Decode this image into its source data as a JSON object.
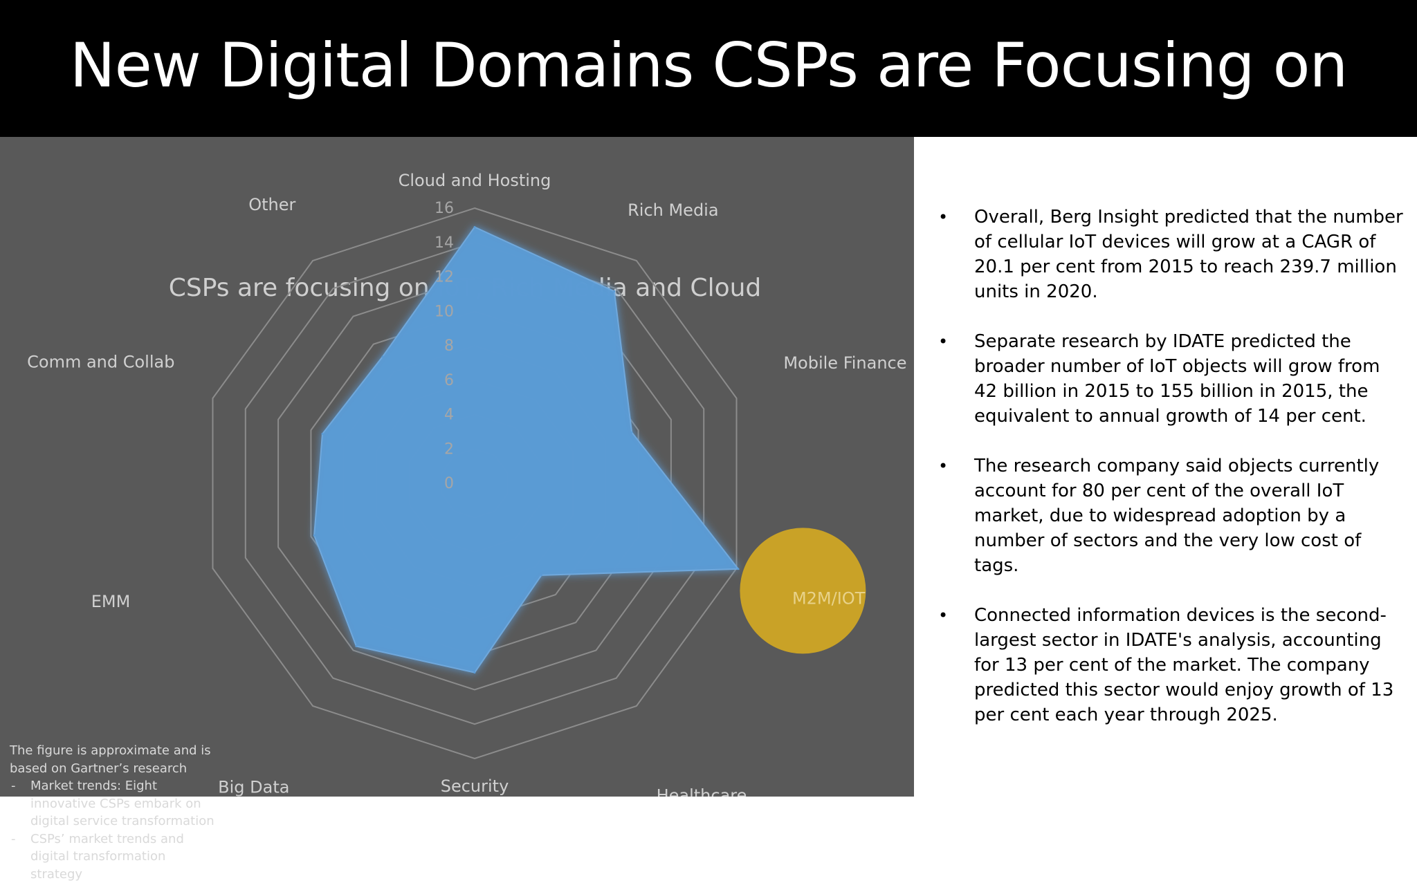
{
  "slide": {
    "title": "New Digital Domains CSPs are Focusing on"
  },
  "chart_data": {
    "type": "radar",
    "title": "CSPs are focusing on IoT, Rich Media and Cloud",
    "categories": [
      "Cloud and Hosting",
      "Rich Media",
      "Mobile Finance",
      "M2M/IOT",
      "Healthcare",
      "Security",
      "Big Data",
      "EMM",
      "Comm and Collab",
      "Other"
    ],
    "values": [
      14.9,
      13.8,
      9.6,
      16.1,
      6.6,
      11.0,
      11.7,
      9.8,
      9.3,
      9.1
    ],
    "rmax": 16,
    "ticks": [
      "0",
      "2",
      "4",
      "6",
      "8",
      "10",
      "12",
      "14",
      "16"
    ],
    "grid": true,
    "series_color": "#5b9bd5",
    "highlight": {
      "category": "M2M/IOT",
      "color": "#c9a227"
    },
    "background": "#595959"
  },
  "footnote": {
    "intro": "The figure is approximate and is based on Gartner’s research",
    "items": [
      "Market trends: Eight innovative CSPs embark on digital service transformation",
      "CSPs’ market trends and digital transformation strategy"
    ]
  },
  "bullets": [
    "Overall, Berg Insight predicted that the number of cellular IoT devices will grow at a CAGR of 20.1 per cent from 2015 to reach 239.7 million units in 2020.",
    "Separate research by IDATE predicted the broader number of IoT objects will grow from 42 billion in 2015 to 155 billion in 2015, the equivalent to annual growth of 14 per cent.",
    "The research company said objects currently account for 80 per cent of the overall IoT market, due to widespread adoption by a number of sectors and the very low cost of tags.",
    "Connected information devices is the second-largest sector in IDATE's analysis, accounting for 13 per cent of the market. The company predicted this sector would enjoy growth of 13 per cent each year through 2025."
  ],
  "bullet_glyph": "•"
}
